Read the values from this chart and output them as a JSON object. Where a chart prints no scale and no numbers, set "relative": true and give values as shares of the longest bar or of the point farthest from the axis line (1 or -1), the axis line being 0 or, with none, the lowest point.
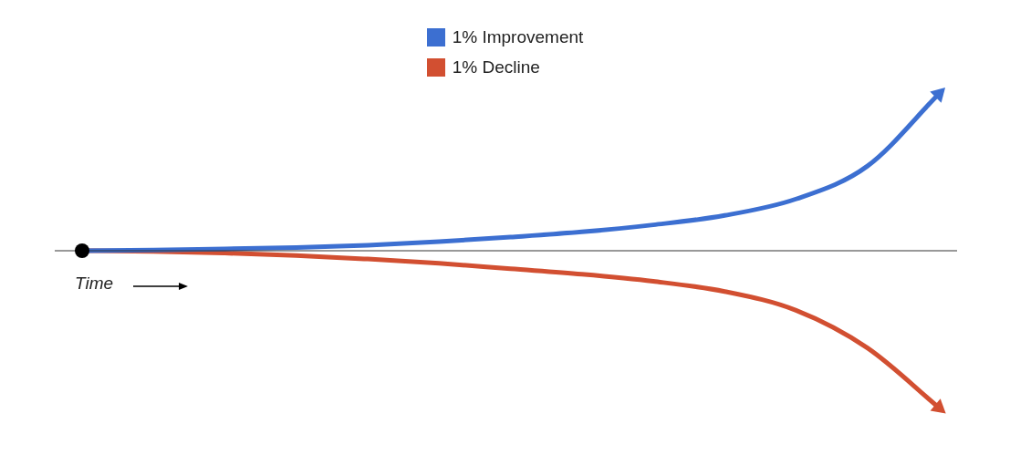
{
  "chart_data": {
    "type": "line",
    "relative": true,
    "categories": [
      null,
      null,
      null,
      null,
      null,
      null,
      null,
      null,
      null,
      null,
      null,
      null,
      null
    ],
    "series": [
      {
        "name": "1% Improvement",
        "color": "#3c6fd1",
        "values": [
          0,
          0.004,
          0.012,
          0.02,
          0.035,
          0.058,
          0.087,
          0.12,
          0.165,
          0.225,
          0.33,
          0.54,
          1
        ]
      },
      {
        "name": "1% Decline",
        "color": "#d24f31",
        "values": [
          0,
          -0.004,
          -0.015,
          -0.03,
          -0.053,
          -0.08,
          -0.115,
          -0.15,
          -0.195,
          -0.26,
          -0.38,
          -0.62,
          -1
        ]
      }
    ],
    "legend": "top",
    "marker": "none",
    "line_style": "solid",
    "annotations": [
      "Time"
    ]
  }
}
